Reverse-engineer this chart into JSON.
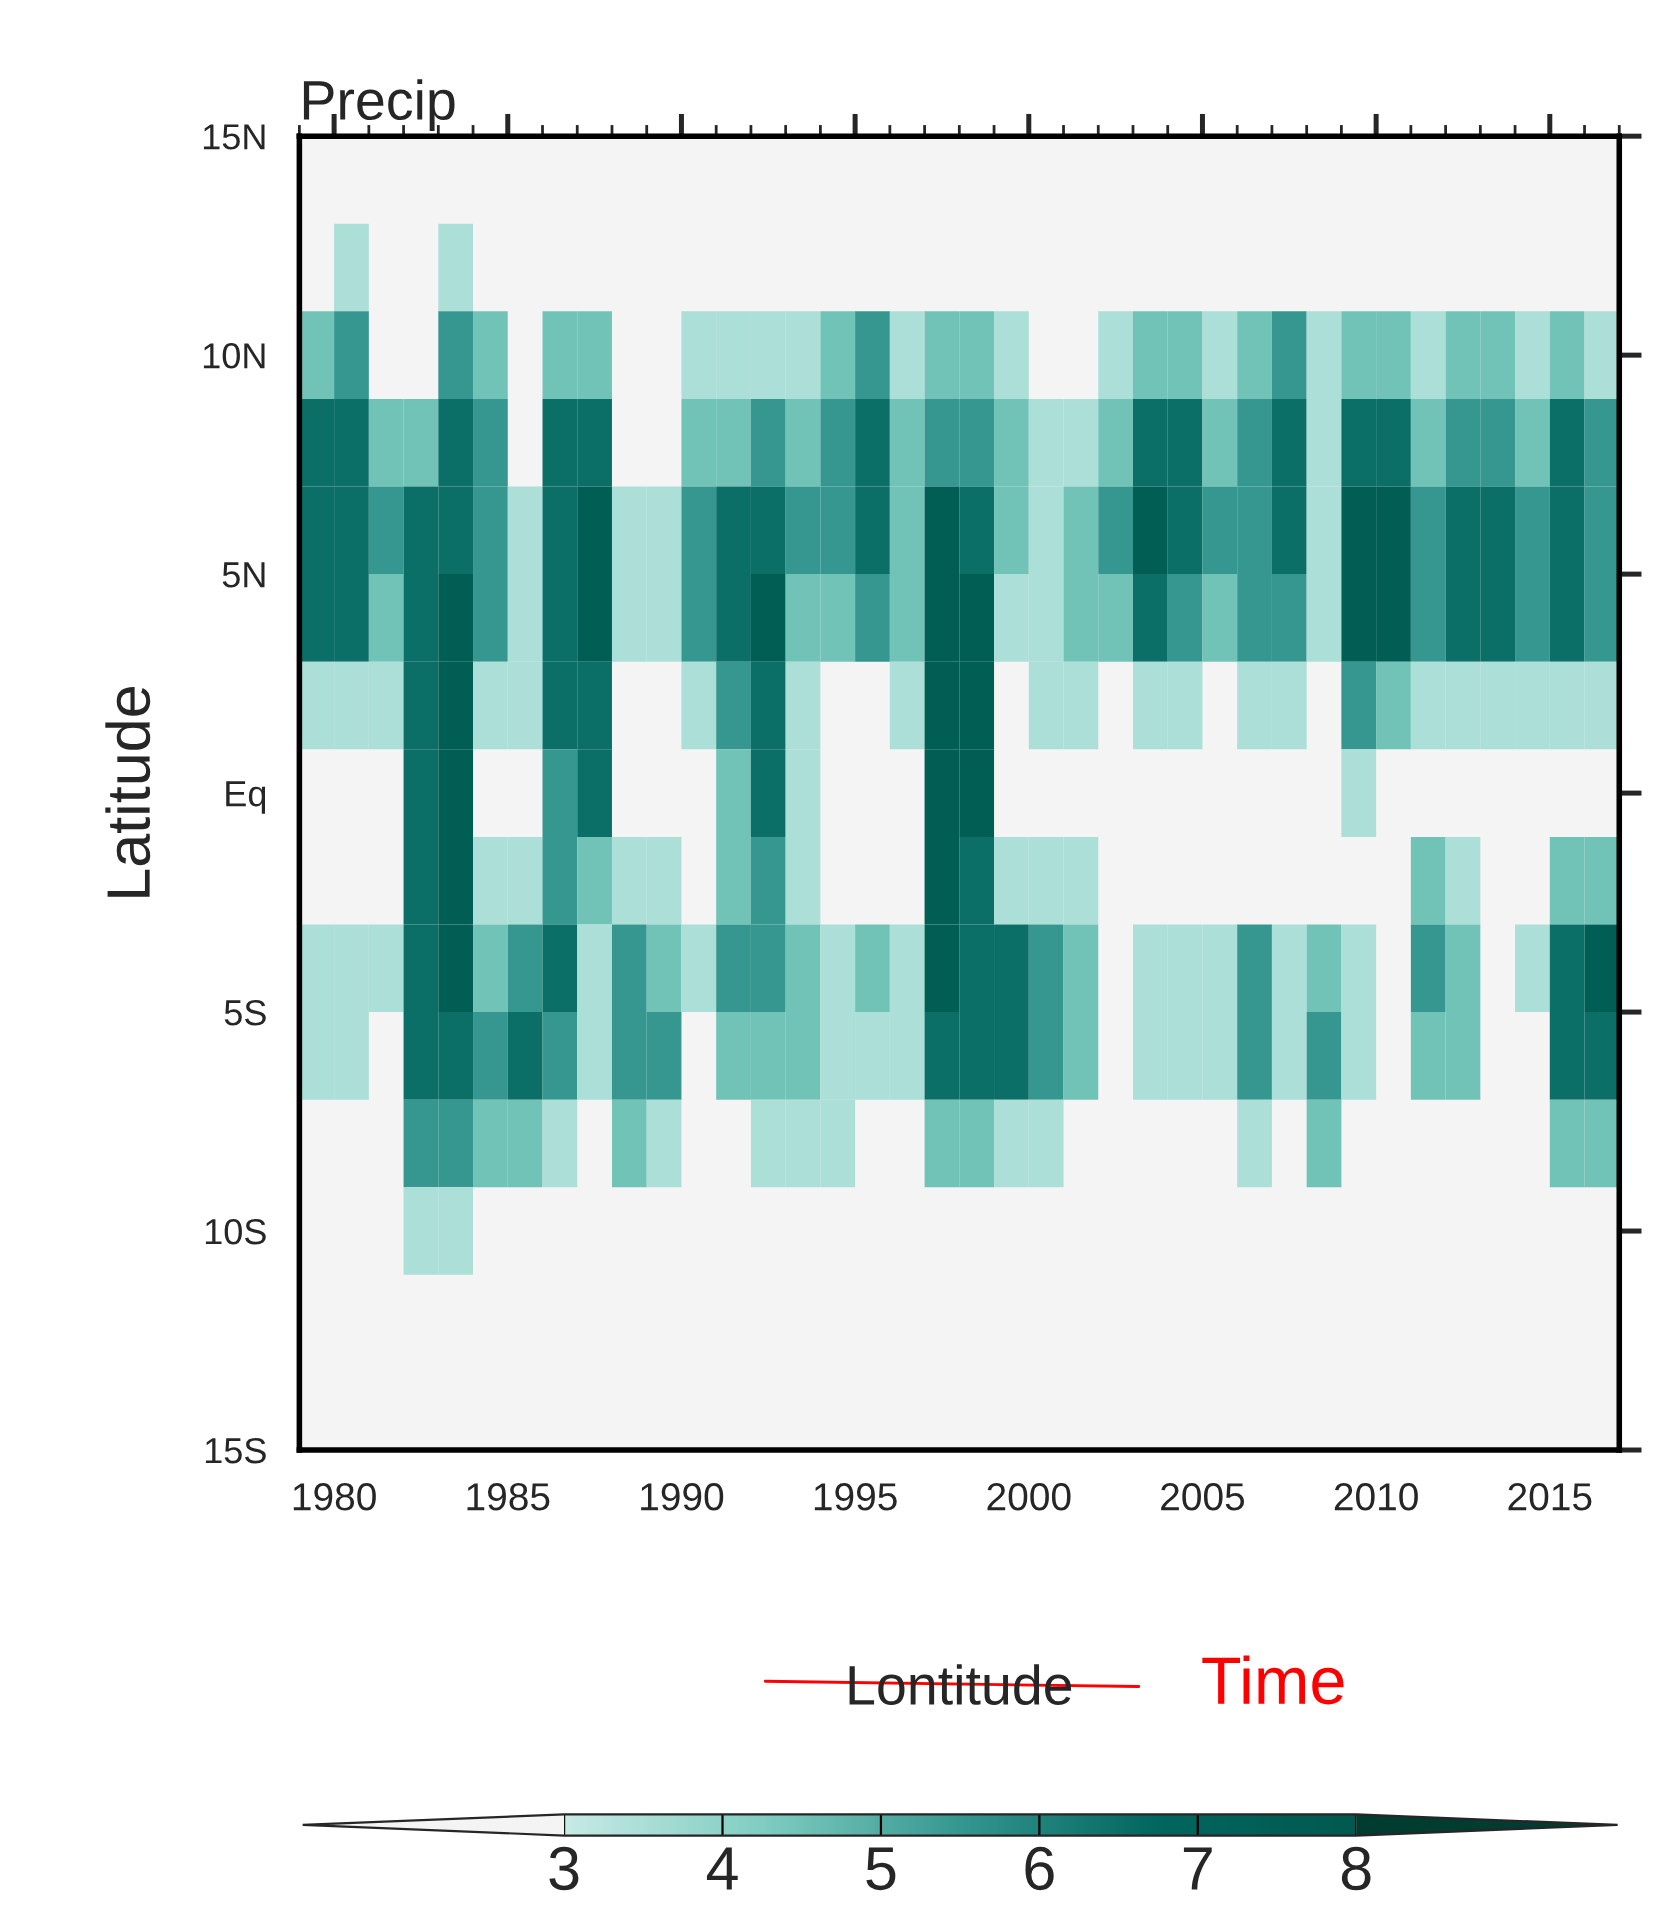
{
  "chart_data": {
    "type": "heatmap",
    "title": "Precip",
    "xlabel": "Lontitude",
    "ylabel": "Latitude",
    "annotations": [
      "Time"
    ],
    "x": [
      1979.5,
      1980.5,
      1981.5,
      1982.5,
      1983.5,
      1984.5,
      1985.5,
      1986.5,
      1987.5,
      1988.5,
      1989.5,
      1990.5,
      1991.5,
      1992.5,
      1993.5,
      1994.5,
      1995.5,
      1996.5,
      1997.5,
      1998.5,
      1999.5,
      2000.5,
      2001.5,
      2002.5,
      2003.5,
      2004.5,
      2005.5,
      2006.5,
      2007.5,
      2008.5,
      2009.5,
      2010.5,
      2011.5,
      2012.5,
      2013.5,
      2014.5,
      2015.5,
      2016.5
    ],
    "y": [
      12,
      10,
      8,
      6,
      4,
      2,
      0,
      -2,
      -4,
      -6,
      -8,
      -10
    ],
    "cells": [
      [
        null,
        3.5,
        null,
        null,
        3.5,
        null,
        null,
        null,
        null,
        null,
        null,
        null,
        null,
        null,
        null,
        null,
        null,
        null,
        null,
        null,
        null,
        null,
        null,
        null,
        null,
        null,
        null,
        null,
        null,
        null,
        null,
        null,
        null,
        null,
        null,
        null,
        null,
        null
      ],
      [
        4.5,
        5.5,
        null,
        null,
        5.5,
        4.5,
        null,
        4.5,
        4.5,
        null,
        null,
        3.5,
        3.5,
        3.5,
        3.5,
        4.5,
        5.5,
        3.5,
        4.5,
        4.5,
        3.5,
        null,
        null,
        3.5,
        4.5,
        4.5,
        3.5,
        4.5,
        5.5,
        3.5,
        4.5,
        4.5,
        3.5,
        4.5,
        4.5,
        3.5,
        4.5,
        3.5
      ],
      [
        6.5,
        6.5,
        4.5,
        4.5,
        6.5,
        5.5,
        null,
        6.5,
        6.5,
        null,
        null,
        4.5,
        4.5,
        5.5,
        4.5,
        5.5,
        6.5,
        4.5,
        5.5,
        5.5,
        4.5,
        3.5,
        3.5,
        4.5,
        6.5,
        6.5,
        4.5,
        5.5,
        6.5,
        3.5,
        6.5,
        6.5,
        4.5,
        5.5,
        5.5,
        4.5,
        6.5,
        5.5
      ],
      [
        6.5,
        6.5,
        5.5,
        6.5,
        6.5,
        5.5,
        3.5,
        6.5,
        7.5,
        3.5,
        3.5,
        5.5,
        6.5,
        6.5,
        5.5,
        5.5,
        6.5,
        4.5,
        7.5,
        6.5,
        4.5,
        3.5,
        4.5,
        5.5,
        7.5,
        6.5,
        5.5,
        5.5,
        6.5,
        3.5,
        7.5,
        7.5,
        5.5,
        6.5,
        6.5,
        5.5,
        6.5,
        5.5
      ],
      [
        6.5,
        6.5,
        4.5,
        6.5,
        7.5,
        5.5,
        3.5,
        6.5,
        7.5,
        3.5,
        3.5,
        5.5,
        6.5,
        7.5,
        4.5,
        4.5,
        5.5,
        4.5,
        7.5,
        7.5,
        3.5,
        3.5,
        4.5,
        4.5,
        6.5,
        5.5,
        4.5,
        5.5,
        5.5,
        3.5,
        7.5,
        7.5,
        5.5,
        6.5,
        6.5,
        5.5,
        6.5,
        5.5
      ],
      [
        3.5,
        3.5,
        3.5,
        6.5,
        7.5,
        3.5,
        3.5,
        6.5,
        6.5,
        null,
        null,
        3.5,
        5.5,
        6.5,
        3.5,
        null,
        null,
        3.5,
        7.5,
        7.5,
        null,
        3.5,
        3.5,
        null,
        3.5,
        3.5,
        null,
        3.5,
        3.5,
        null,
        5.5,
        4.5,
        3.5,
        3.5,
        3.5,
        3.5,
        3.5,
        3.5
      ],
      [
        null,
        null,
        null,
        6.5,
        7.5,
        null,
        null,
        5.5,
        6.5,
        null,
        null,
        null,
        4.5,
        6.5,
        3.5,
        null,
        null,
        null,
        7.5,
        7.5,
        null,
        null,
        null,
        null,
        null,
        null,
        null,
        null,
        null,
        null,
        3.5,
        null,
        null,
        null,
        null,
        null,
        null,
        null
      ],
      [
        null,
        null,
        null,
        6.5,
        7.5,
        3.5,
        3.5,
        5.5,
        4.5,
        3.5,
        3.5,
        null,
        4.5,
        5.5,
        3.5,
        null,
        null,
        null,
        7.5,
        6.5,
        3.5,
        3.5,
        3.5,
        null,
        null,
        null,
        null,
        null,
        null,
        null,
        null,
        null,
        4.5,
        3.5,
        null,
        null,
        4.5,
        4.5
      ],
      [
        3.5,
        3.5,
        3.5,
        6.5,
        7.5,
        4.5,
        5.5,
        6.5,
        3.5,
        5.5,
        4.5,
        3.5,
        5.5,
        5.5,
        4.5,
        3.5,
        4.5,
        3.5,
        7.5,
        6.5,
        6.5,
        5.5,
        4.5,
        null,
        3.5,
        3.5,
        3.5,
        5.5,
        3.5,
        4.5,
        3.5,
        null,
        5.5,
        4.5,
        null,
        3.5,
        6.5,
        7.5
      ],
      [
        3.5,
        3.5,
        null,
        6.5,
        6.5,
        5.5,
        6.5,
        5.5,
        3.5,
        5.5,
        5.5,
        null,
        4.5,
        4.5,
        4.5,
        3.5,
        3.5,
        3.5,
        6.5,
        6.5,
        6.5,
        5.5,
        4.5,
        null,
        3.5,
        3.5,
        3.5,
        5.5,
        3.5,
        5.5,
        3.5,
        null,
        4.5,
        4.5,
        null,
        null,
        6.5,
        6.5
      ],
      [
        null,
        null,
        null,
        5.5,
        5.5,
        4.5,
        4.5,
        3.5,
        null,
        4.5,
        3.5,
        null,
        null,
        3.5,
        3.5,
        3.5,
        null,
        null,
        4.5,
        4.5,
        3.5,
        3.5,
        null,
        null,
        null,
        null,
        null,
        3.5,
        null,
        4.5,
        null,
        null,
        null,
        null,
        null,
        null,
        4.5,
        4.5
      ],
      [
        null,
        null,
        null,
        3.5,
        3.5,
        null,
        null,
        null,
        null,
        null,
        null,
        null,
        null,
        null,
        null,
        null,
        null,
        null,
        null,
        null,
        null,
        null,
        null,
        null,
        null,
        null,
        null,
        null,
        null,
        null,
        null,
        null,
        null,
        null,
        null,
        null,
        null,
        null
      ]
    ],
    "colors": [
      "#f4f4f4",
      "#c7eae5",
      "#80cdc1",
      "#35978f",
      "#01665e",
      "#01594f",
      "#003c30"
    ],
    "clim": [
      3,
      8
    ],
    "cticks": [
      3,
      4,
      5,
      6,
      7,
      8
    ],
    "xlim": [
      1979,
      2017
    ],
    "xticks": [
      1980,
      1985,
      1990,
      1995,
      2000,
      2005,
      2010,
      2015
    ],
    "ylim": [
      -15,
      15
    ],
    "yticks": [
      {
        "value": -15,
        "label": "15S"
      },
      {
        "value": -10,
        "label": "10S"
      },
      {
        "value": -5,
        "label": "5S"
      },
      {
        "value": 0,
        "label": "Eq"
      },
      {
        "value": 5,
        "label": "5N"
      },
      {
        "value": 10,
        "label": "10N"
      },
      {
        "value": 15,
        "label": "15N"
      }
    ],
    "grid": false
  }
}
